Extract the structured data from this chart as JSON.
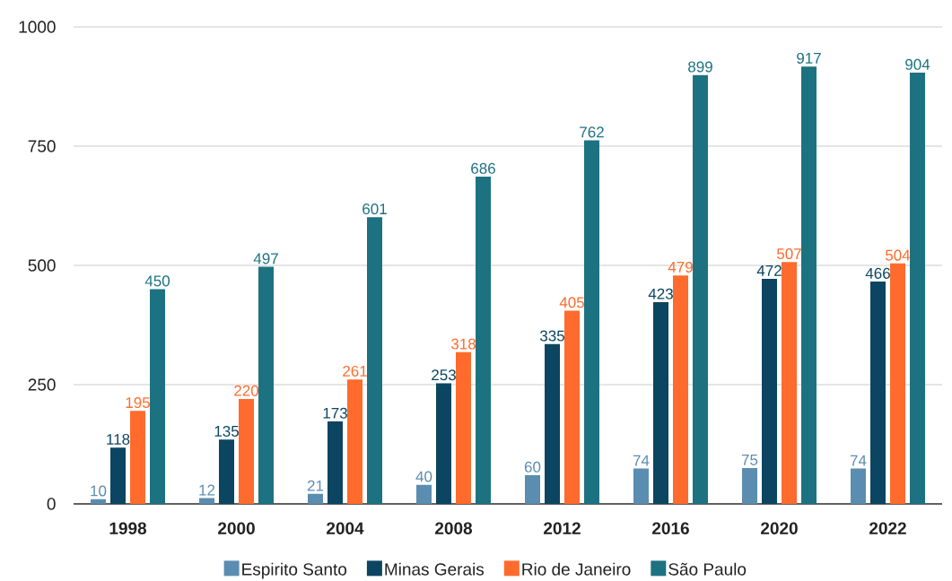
{
  "chart_data": {
    "type": "bar",
    "categories": [
      "1998",
      "2000",
      "2004",
      "2008",
      "2012",
      "2016",
      "2020",
      "2022"
    ],
    "series": [
      {
        "name": "Espirito Santo",
        "color": "#5b8db0",
        "values": [
          10,
          12,
          21,
          40,
          60,
          74,
          75,
          74
        ]
      },
      {
        "name": "Minas Gerais",
        "color": "#0b4561",
        "values": [
          118,
          135,
          173,
          253,
          335,
          423,
          472,
          466
        ]
      },
      {
        "name": "Rio de Janeiro",
        "color": "#ff6b2c",
        "values": [
          195,
          220,
          261,
          318,
          405,
          479,
          507,
          504
        ]
      },
      {
        "name": "São Paulo",
        "color": "#1d7282",
        "values": [
          450,
          497,
          601,
          686,
          762,
          899,
          917,
          904
        ]
      }
    ],
    "ylim": [
      0,
      1000
    ],
    "yticks": [
      0,
      250,
      500,
      750,
      1000
    ],
    "grid": "y",
    "legend": "bottom",
    "data_labels": true
  }
}
